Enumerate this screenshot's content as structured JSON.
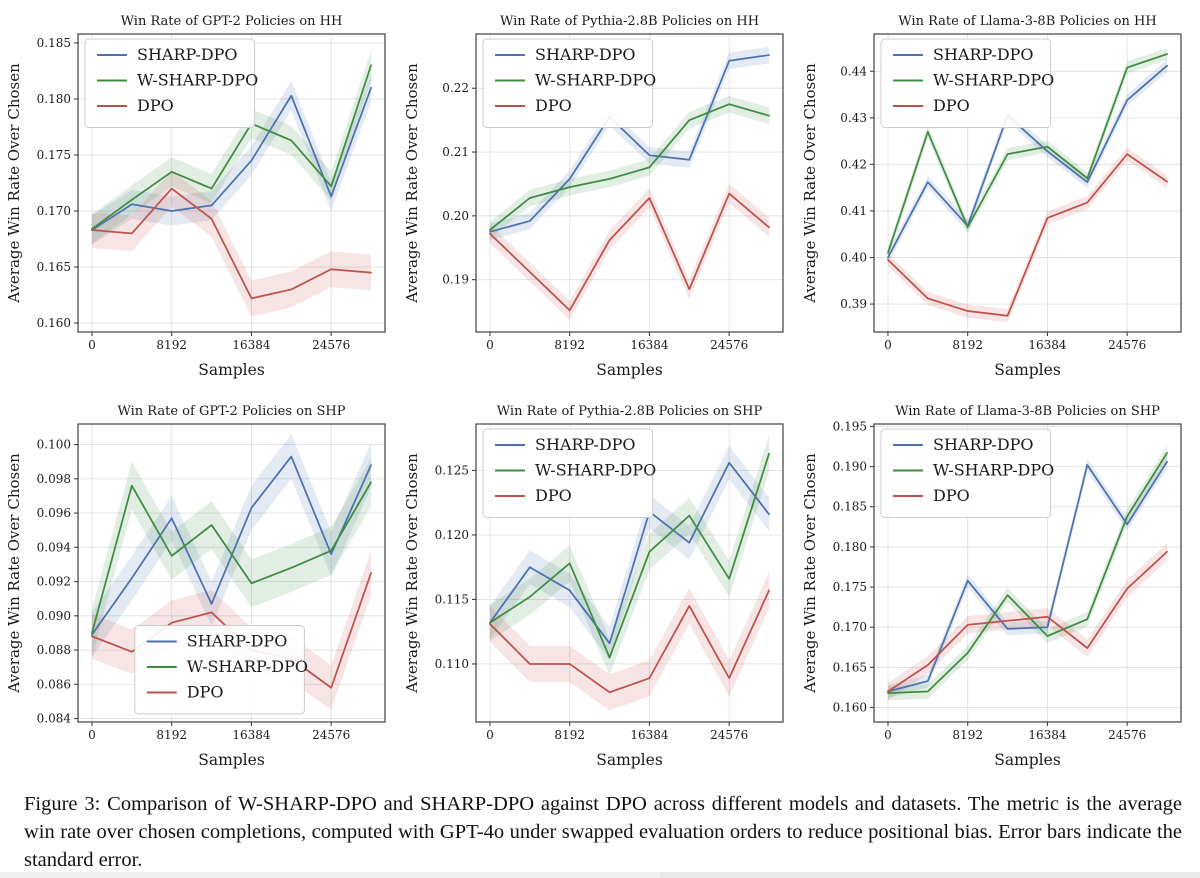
{
  "figure": {
    "caption": "Figure 3: Comparison of W-SHARP-DPO and SHARP-DPO against DPO across different models and datasets. The metric is the average win rate over chosen completions, computed with GPT-4o under swapped evaluation orders to reduce positional bias. Error bars indicate the standard error."
  },
  "colors": {
    "sharp_dpo": "#4c72b0",
    "w_sharp_dpo": "#3d8c40",
    "dpo": "#c0504a",
    "grid": "#e0e0e0",
    "frame": "#404040",
    "text": "#1a1a1a",
    "bottom_strip": "#f0f0f0"
  },
  "chart_data": [
    {
      "type": "line",
      "title": "Win Rate of GPT-2 Policies on HH",
      "xlabel": "Samples",
      "ylabel": "Average Win Rate Over Chosen",
      "grid": true,
      "legend_position": "upper-left",
      "x": [
        0,
        4096,
        8192,
        12288,
        16384,
        20480,
        24576,
        28672
      ],
      "xticks": [
        0,
        8192,
        16384,
        24576
      ],
      "xtick_labels": [
        "0",
        "8192",
        "16384",
        "24576"
      ],
      "xlim": [
        -1434,
        30106
      ],
      "ylim": [
        0.1592,
        0.1858
      ],
      "yticks": [
        0.16,
        0.165,
        0.17,
        0.175,
        0.18,
        0.185
      ],
      "ytick_labels": [
        "0.160",
        "0.165",
        "0.170",
        "0.175",
        "0.180",
        "0.185"
      ],
      "series": [
        {
          "name": "SHARP-DPO",
          "color": "#4c72b0",
          "err": 0.0013,
          "values": [
            0.1683,
            0.1706,
            0.17,
            0.1705,
            0.1745,
            0.1803,
            0.1713,
            0.181
          ]
        },
        {
          "name": "W-SHARP-DPO",
          "color": "#3d8c40",
          "err": 0.0013,
          "values": [
            0.1684,
            0.171,
            0.1735,
            0.172,
            0.1778,
            0.1763,
            0.1722,
            0.183
          ]
        },
        {
          "name": "DPO",
          "color": "#c0504a",
          "err": 0.0016,
          "values": [
            0.1683,
            0.168,
            0.172,
            0.1693,
            0.1622,
            0.163,
            0.1648,
            0.1645
          ]
        }
      ]
    },
    {
      "type": "line",
      "title": "Win Rate of Pythia-2.8B Policies on HH",
      "xlabel": "Samples",
      "ylabel": "Average Win Rate Over Chosen",
      "grid": true,
      "legend_position": "upper-left",
      "x": [
        0,
        4096,
        8192,
        12288,
        16384,
        20480,
        24576,
        28672
      ],
      "xticks": [
        0,
        8192,
        16384,
        24576
      ],
      "xtick_labels": [
        "0",
        "8192",
        "16384",
        "24576"
      ],
      "xlim": [
        -1434,
        30106
      ],
      "ylim": [
        0.1818,
        0.2285
      ],
      "yticks": [
        0.19,
        0.2,
        0.21,
        0.22
      ],
      "ytick_labels": [
        "0.19",
        "0.20",
        "0.21",
        "0.22"
      ],
      "series": [
        {
          "name": "SHARP-DPO",
          "color": "#4c72b0",
          "err": 0.0013,
          "values": [
            0.1975,
            0.1992,
            0.2058,
            0.2155,
            0.2095,
            0.2088,
            0.2243,
            0.2252
          ]
        },
        {
          "name": "W-SHARP-DPO",
          "color": "#3d8c40",
          "err": 0.0013,
          "values": [
            0.1978,
            0.2028,
            0.2045,
            0.2058,
            0.2076,
            0.215,
            0.2175,
            0.2157
          ]
        },
        {
          "name": "DPO",
          "color": "#c0504a",
          "err": 0.0015,
          "values": [
            0.1972,
            0.1912,
            0.1852,
            0.1962,
            0.2028,
            0.1885,
            0.2035,
            0.1982
          ]
        }
      ]
    },
    {
      "type": "line",
      "title": "Win Rate of Llama-3-8B Policies on HH",
      "xlabel": "Samples",
      "ylabel": "Average Win Rate Over Chosen",
      "grid": true,
      "legend_position": "upper-left",
      "x": [
        0,
        4096,
        8192,
        12288,
        16384,
        20480,
        24576,
        28672
      ],
      "xticks": [
        0,
        8192,
        16384,
        24576
      ],
      "xtick_labels": [
        "0",
        "8192",
        "16384",
        "24576"
      ],
      "xlim": [
        -1434,
        30106
      ],
      "ylim": [
        0.384,
        0.448
      ],
      "yticks": [
        0.39,
        0.4,
        0.41,
        0.42,
        0.43,
        0.44
      ],
      "ytick_labels": [
        "0.39",
        "0.40",
        "0.41",
        "0.42",
        "0.43",
        "0.44"
      ],
      "series": [
        {
          "name": "SHARP-DPO",
          "color": "#4c72b0",
          "err": 0.0013,
          "values": [
            0.4,
            0.4162,
            0.4068,
            0.4305,
            0.4228,
            0.4162,
            0.4338,
            0.4412
          ]
        },
        {
          "name": "W-SHARP-DPO",
          "color": "#3d8c40",
          "err": 0.0013,
          "values": [
            0.401,
            0.427,
            0.4065,
            0.4222,
            0.4238,
            0.417,
            0.4408,
            0.4437
          ]
        },
        {
          "name": "DPO",
          "color": "#c0504a",
          "err": 0.0014,
          "values": [
            0.3995,
            0.3912,
            0.3885,
            0.3875,
            0.4085,
            0.4118,
            0.4222,
            0.4163
          ]
        }
      ]
    },
    {
      "type": "line",
      "title": "Win Rate of GPT-2 Policies on SHP",
      "xlabel": "Samples",
      "ylabel": "Average Win Rate Over Chosen",
      "grid": true,
      "legend_position": "lower-center",
      "x": [
        0,
        4096,
        8192,
        12288,
        16384,
        20480,
        24576,
        28672
      ],
      "xticks": [
        0,
        8192,
        16384,
        24576
      ],
      "xtick_labels": [
        "0",
        "8192",
        "16384",
        "24576"
      ],
      "xlim": [
        -1434,
        30106
      ],
      "ylim": [
        0.0838,
        0.1012
      ],
      "yticks": [
        0.084,
        0.086,
        0.088,
        0.09,
        0.092,
        0.094,
        0.096,
        0.098,
        0.1
      ],
      "ytick_labels": [
        "0.084",
        "0.086",
        "0.088",
        "0.090",
        "0.092",
        "0.094",
        "0.096",
        "0.098",
        "0.100"
      ],
      "series": [
        {
          "name": "SHARP-DPO",
          "color": "#4c72b0",
          "err": 0.0013,
          "values": [
            0.0889,
            0.0922,
            0.0957,
            0.0907,
            0.0963,
            0.0993,
            0.0936,
            0.0988
          ]
        },
        {
          "name": "W-SHARP-DPO",
          "color": "#3d8c40",
          "err": 0.0014,
          "values": [
            0.089,
            0.0976,
            0.0935,
            0.0953,
            0.0919,
            0.0928,
            0.0938,
            0.0978
          ]
        },
        {
          "name": "DPO",
          "color": "#c0504a",
          "err": 0.0013,
          "values": [
            0.0888,
            0.0879,
            0.0896,
            0.0902,
            0.088,
            0.0875,
            0.0858,
            0.0925
          ]
        }
      ]
    },
    {
      "type": "line",
      "title": "Win Rate of Pythia-2.8B Policies on SHP",
      "xlabel": "Samples",
      "ylabel": "Average Win Rate Over Chosen",
      "grid": true,
      "legend_position": "upper-left",
      "x": [
        0,
        4096,
        8192,
        12288,
        16384,
        20480,
        24576,
        28672
      ],
      "xticks": [
        0,
        8192,
        16384,
        24576
      ],
      "xtick_labels": [
        "0",
        "8192",
        "16384",
        "24576"
      ],
      "xlim": [
        -1434,
        30106
      ],
      "ylim": [
        0.1055,
        0.1286
      ],
      "yticks": [
        0.11,
        0.115,
        0.12,
        0.125
      ],
      "ytick_labels": [
        "0.110",
        "0.115",
        "0.120",
        "0.125"
      ],
      "series": [
        {
          "name": "SHARP-DPO",
          "color": "#4c72b0",
          "err": 0.0013,
          "values": [
            0.1132,
            0.1175,
            0.1157,
            0.1116,
            0.1218,
            0.1194,
            0.1256,
            0.1216
          ]
        },
        {
          "name": "W-SHARP-DPO",
          "color": "#3d8c40",
          "err": 0.0014,
          "values": [
            0.1132,
            0.1152,
            0.1178,
            0.1105,
            0.1187,
            0.1215,
            0.1166,
            0.1263
          ]
        },
        {
          "name": "DPO",
          "color": "#c0504a",
          "err": 0.0014,
          "values": [
            0.1131,
            0.11,
            0.11,
            0.1078,
            0.1089,
            0.1145,
            0.1089,
            0.1157
          ]
        }
      ]
    },
    {
      "type": "line",
      "title": "Win Rate of Llama-3-8B Policies on SHP",
      "xlabel": "Samples",
      "ylabel": "Average Win Rate Over Chosen",
      "grid": true,
      "legend_position": "upper-left",
      "x": [
        0,
        4096,
        8192,
        12288,
        16384,
        20480,
        24576,
        28672
      ],
      "xticks": [
        0,
        8192,
        16384,
        24576
      ],
      "xtick_labels": [
        "0",
        "8192",
        "16384",
        "24576"
      ],
      "xlim": [
        -1434,
        30106
      ],
      "ylim": [
        0.1582,
        0.1953
      ],
      "yticks": [
        0.16,
        0.165,
        0.17,
        0.175,
        0.18,
        0.185,
        0.19,
        0.195
      ],
      "ytick_labels": [
        "0.160",
        "0.165",
        "0.170",
        "0.175",
        "0.180",
        "0.185",
        "0.190",
        "0.195"
      ],
      "series": [
        {
          "name": "SHARP-DPO",
          "color": "#4c72b0",
          "err": 0.0008,
          "values": [
            0.162,
            0.1633,
            0.1758,
            0.1698,
            0.17,
            0.1902,
            0.1828,
            0.1906
          ]
        },
        {
          "name": "W-SHARP-DPO",
          "color": "#3d8c40",
          "err": 0.0009,
          "values": [
            0.1618,
            0.162,
            0.1668,
            0.174,
            0.1689,
            0.171,
            0.1838,
            0.1917
          ]
        },
        {
          "name": "DPO",
          "color": "#c0504a",
          "err": 0.0011,
          "values": [
            0.162,
            0.1653,
            0.1703,
            0.1708,
            0.1713,
            0.1674,
            0.1748,
            0.1794
          ]
        }
      ]
    }
  ]
}
